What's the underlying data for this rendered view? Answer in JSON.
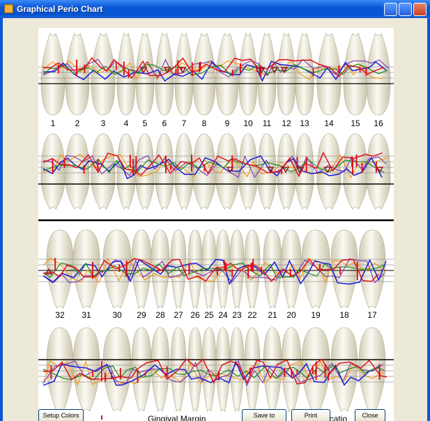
{
  "window": {
    "title": "Graphical Perio Chart"
  },
  "upper_tooth_numbers": [
    1,
    2,
    3,
    4,
    5,
    6,
    7,
    8,
    9,
    10,
    11,
    12,
    13,
    14,
    15,
    16
  ],
  "lower_tooth_numbers": [
    32,
    31,
    30,
    29,
    28,
    27,
    26,
    25,
    24,
    23,
    22,
    21,
    20,
    19,
    18,
    17
  ],
  "legend": {
    "gingival_margin": "Gingival Margin",
    "furcation": "urcatio"
  },
  "buttons": {
    "setup_colors": "Setup Colors",
    "save_to_images": "Save to Images",
    "print": "Print",
    "close": "Close"
  }
}
